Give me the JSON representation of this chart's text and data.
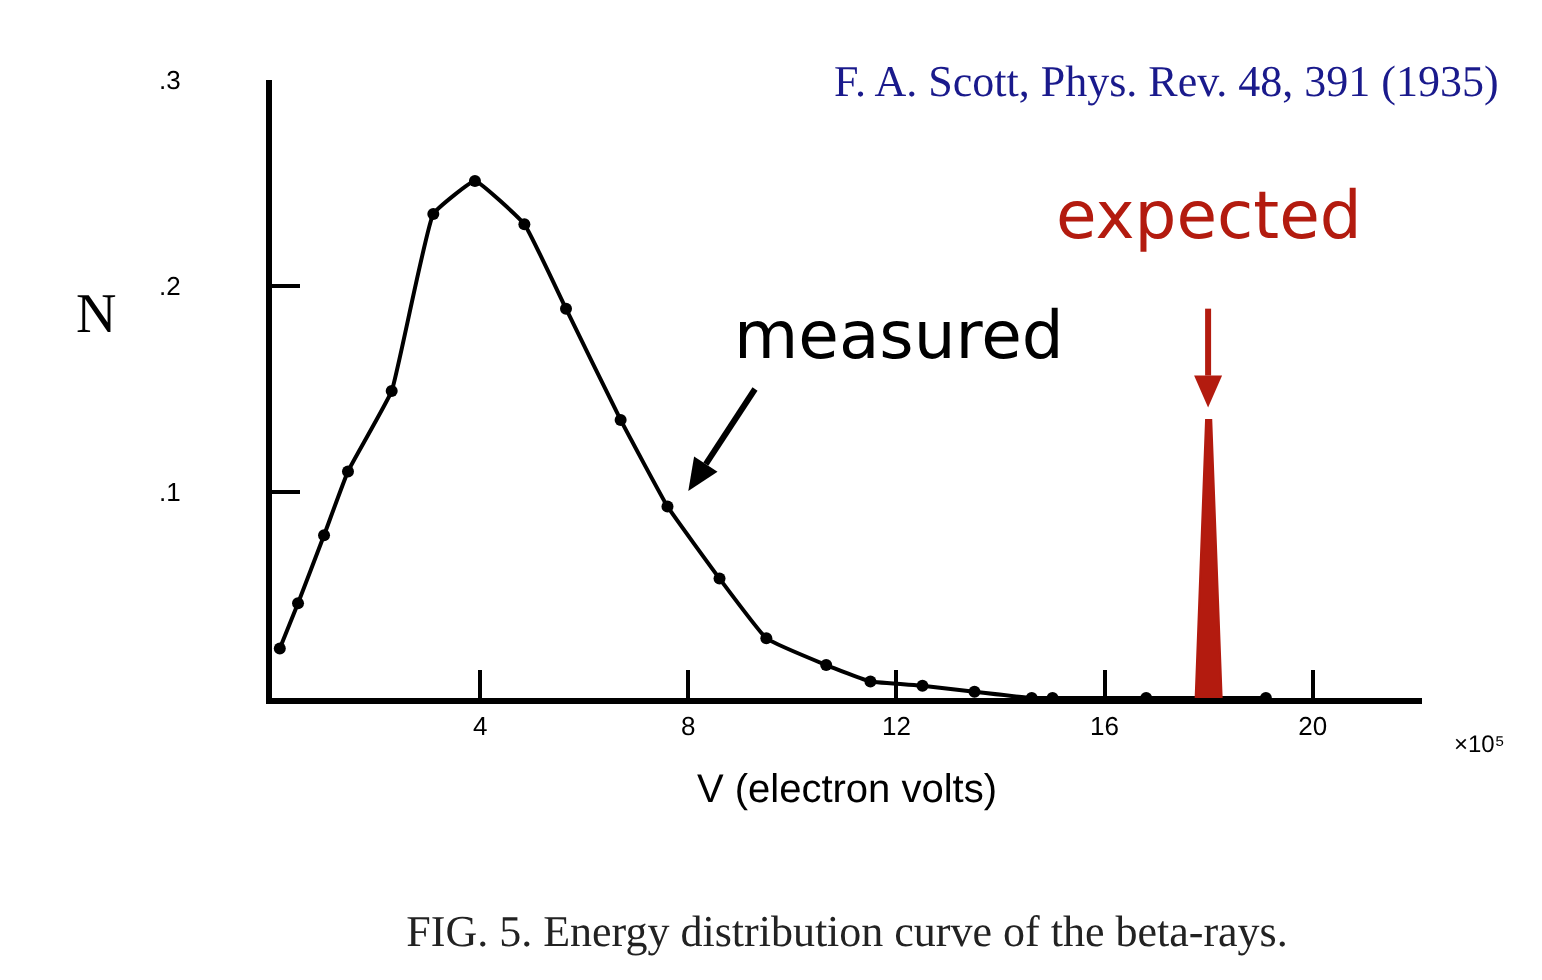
{
  "chart_data": {
    "type": "line",
    "title": "FIG. 5. Energy distribution curve of the beta-rays.",
    "xlabel": "V (electron volts)",
    "ylabel": "N",
    "annotations": [
      "F. A. Scott, Phys. Rev. 48, 391 (1935)",
      "×10⁵",
      "measured",
      "expected"
    ],
    "series": [
      {
        "type": "line",
        "marker": "circle",
        "color": "#000000",
        "x": [
          0.15,
          0.5,
          1.0,
          1.46,
          2.3,
          3.1,
          3.9,
          4.85,
          5.65,
          6.7,
          7.6,
          8.6,
          9.5,
          10.65,
          11.5,
          12.5,
          13.5,
          14.6,
          15.0,
          16.8,
          19.1
        ],
        "values": [
          0.024,
          0.046,
          0.079,
          0.11,
          0.149,
          0.235,
          0.251,
          0.23,
          0.189,
          0.135,
          0.093,
          0.058,
          0.029,
          0.016,
          0.008,
          0.006,
          0.003,
          0,
          0,
          0,
          0
        ]
      },
      {
        "type": "area",
        "color": "#b31b0f",
        "x": [
          17.75,
          17.95,
          18.05,
          18.25
        ],
        "values": [
          0,
          0.135,
          0.135,
          0
        ]
      }
    ],
    "xlim": [
      0,
      22.1
    ],
    "xticks": [
      4,
      8,
      12,
      16,
      20
    ],
    "ylim": [
      0,
      0.3
    ],
    "yticks": [
      {
        "value": 0.1,
        "label": ".1"
      },
      {
        "value": 0.2,
        "label": ".2"
      },
      {
        "value": 0.3,
        "label": ".3"
      }
    ],
    "grid": false,
    "line_style": "solid"
  }
}
